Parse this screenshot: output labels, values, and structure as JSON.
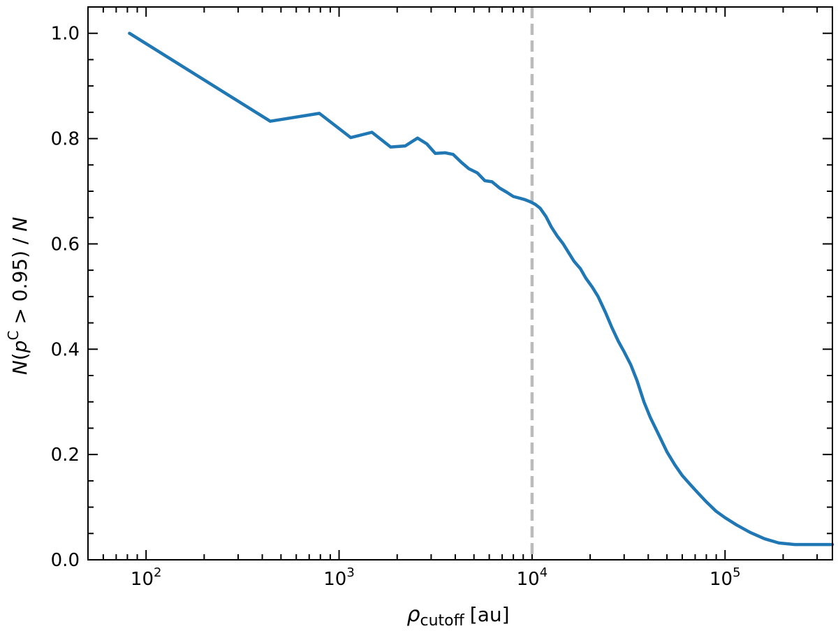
{
  "chart_data": {
    "type": "line",
    "x_scale": "log",
    "xlim": [
      50,
      360000
    ],
    "ylim": [
      0.0,
      1.05
    ],
    "x_ticks": [
      {
        "value": 100,
        "base": "10",
        "exp": "2"
      },
      {
        "value": 1000,
        "base": "10",
        "exp": "3"
      },
      {
        "value": 10000,
        "base": "10",
        "exp": "4"
      },
      {
        "value": 100000,
        "base": "10",
        "exp": "5"
      }
    ],
    "y_ticks": [
      {
        "value": 0.0,
        "label": "0.0"
      },
      {
        "value": 0.2,
        "label": "0.2"
      },
      {
        "value": 0.4,
        "label": "0.4"
      },
      {
        "value": 0.6,
        "label": "0.6"
      },
      {
        "value": 0.8,
        "label": "0.8"
      },
      {
        "value": 1.0,
        "label": "1.0"
      }
    ],
    "xlabel": {
      "symbol": "ρ",
      "subscript": "cutoff",
      "unit": "[au]"
    },
    "ylabel": {
      "text_italic_n": "N",
      "open": "(",
      "p": "p",
      "sup": "C",
      "rest": " > 0.95) / ",
      "n2": "N"
    },
    "grid": false,
    "reference_line": {
      "x": 10000,
      "color": "#bbbbbb",
      "style": "dashed"
    },
    "series": [
      {
        "color": "#1f77b4",
        "x": [
          82,
          440,
          790,
          1150,
          1480,
          1850,
          2200,
          2550,
          2850,
          3150,
          3550,
          3900,
          4300,
          4700,
          5200,
          5700,
          6200,
          6800,
          7400,
          8000,
          8600,
          9200,
          9800,
          10400,
          11000,
          11800,
          12600,
          13500,
          14500,
          15500,
          16500,
          17800,
          19000,
          20500,
          22000,
          24000,
          26000,
          28000,
          30000,
          32500,
          35000,
          38000,
          41000,
          45000,
          50000,
          55000,
          60000,
          66000,
          72000,
          80000,
          90000,
          100000,
          115000,
          135000,
          160000,
          190000,
          230000,
          280000,
          360000
        ],
        "y": [
          1.0,
          0.833,
          0.848,
          0.802,
          0.812,
          0.784,
          0.786,
          0.801,
          0.79,
          0.772,
          0.773,
          0.77,
          0.755,
          0.743,
          0.735,
          0.72,
          0.718,
          0.706,
          0.698,
          0.69,
          0.687,
          0.684,
          0.68,
          0.675,
          0.668,
          0.652,
          0.632,
          0.615,
          0.6,
          0.583,
          0.567,
          0.553,
          0.535,
          0.518,
          0.5,
          0.47,
          0.44,
          0.415,
          0.395,
          0.37,
          0.34,
          0.3,
          0.27,
          0.24,
          0.205,
          0.18,
          0.16,
          0.143,
          0.128,
          0.11,
          0.092,
          0.08,
          0.066,
          0.052,
          0.04,
          0.032,
          0.029,
          0.029,
          0.029
        ]
      }
    ]
  }
}
